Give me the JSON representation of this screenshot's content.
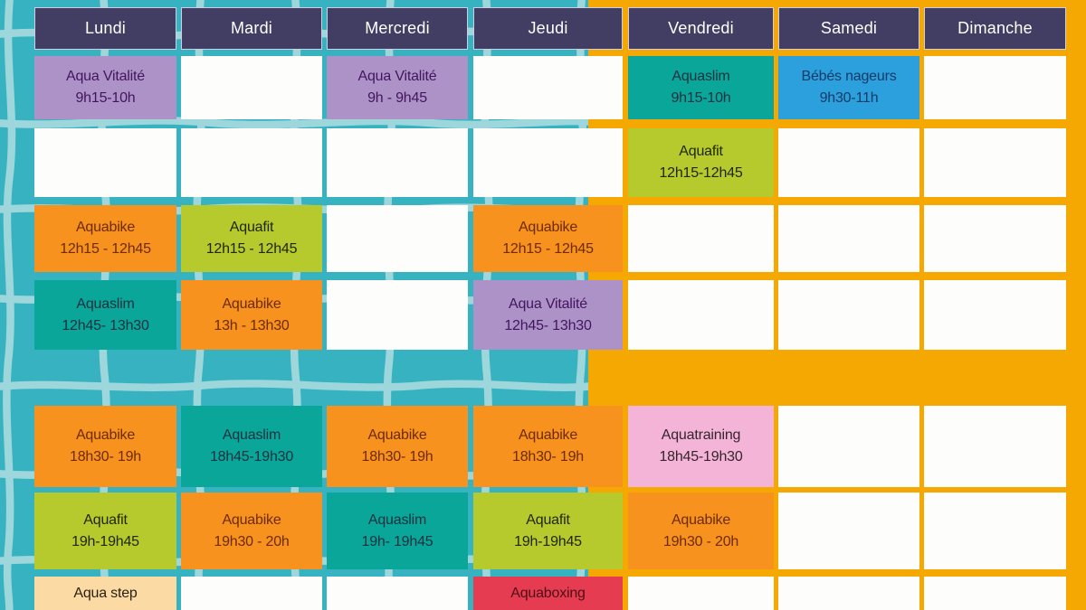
{
  "table": {
    "days": [
      "Lundi",
      "Mardi",
      "Mercredi",
      "Jeudi",
      "Vendredi",
      "Samedi",
      "Dimanche"
    ],
    "rows": [
      {
        "cells": [
          {
            "color": "purple",
            "name": "Aqua Vitalité",
            "time": "9h15-10h"
          },
          {
            "empty": true
          },
          {
            "color": "purple",
            "name": "Aqua Vitalité",
            "time": "9h - 9h45"
          },
          {
            "empty": true
          },
          {
            "color": "teal",
            "name": "Aquaslim",
            "time": "9h15-10h"
          },
          {
            "color": "blue",
            "name": "Bébés nageurs",
            "time": "9h30-11h"
          },
          {
            "empty": true
          }
        ]
      },
      {
        "cells": [
          {
            "empty": true
          },
          {
            "empty": true
          },
          {
            "empty": true
          },
          {
            "empty": true
          },
          {
            "color": "lime",
            "name": "Aquafit",
            "time": "12h15-12h45"
          },
          {
            "empty": true
          },
          {
            "empty": true
          }
        ]
      },
      {
        "cells": [
          {
            "color": "orange",
            "name": "Aquabike",
            "time": "12h15 - 12h45"
          },
          {
            "color": "lime",
            "name": "Aquafit",
            "time": "12h15 - 12h45"
          },
          {
            "empty": true
          },
          {
            "color": "orange",
            "name": "Aquabike",
            "time": "12h15 - 12h45"
          },
          {
            "empty": true
          },
          {
            "empty": true
          },
          {
            "empty": true
          }
        ]
      },
      {
        "cells": [
          {
            "color": "teal",
            "name": "Aquaslim",
            "time": "12h45- 13h30"
          },
          {
            "color": "orange",
            "name": "Aquabike",
            "time": "13h - 13h30"
          },
          {
            "empty": true
          },
          {
            "color": "purple",
            "name": "Aqua Vitalité",
            "time": "12h45- 13h30"
          },
          {
            "empty": true
          },
          {
            "empty": true
          },
          {
            "empty": true
          }
        ]
      },
      {
        "cells": [
          {
            "color": "orange",
            "name": "Aquabike",
            "time": "18h30- 19h"
          },
          {
            "color": "teal",
            "name": "Aquaslim",
            "time": "18h45-19h30"
          },
          {
            "color": "orange",
            "name": "Aquabike",
            "time": "18h30- 19h"
          },
          {
            "color": "orange",
            "name": "Aquabike",
            "time": "18h30- 19h"
          },
          {
            "color": "pink",
            "name": "Aquatraining",
            "time": "18h45-19h30"
          },
          {
            "empty": true
          },
          {
            "empty": true
          }
        ]
      },
      {
        "cells": [
          {
            "color": "lime",
            "name": "Aquafit",
            "time": "19h-19h45"
          },
          {
            "color": "orange",
            "name": "Aquabike",
            "time": "19h30 - 20h"
          },
          {
            "color": "teal",
            "name": "Aquaslim",
            "time": "19h- 19h45"
          },
          {
            "color": "lime",
            "name": "Aquafit",
            "time": "19h-19h45"
          },
          {
            "color": "orange",
            "name": "Aquabike",
            "time": "19h30 - 20h"
          },
          {
            "empty": true
          },
          {
            "empty": true
          }
        ]
      },
      {
        "cells": [
          {
            "color": "peach",
            "name": "Aqua step",
            "time": ""
          },
          {
            "empty": true
          },
          {
            "empty": true
          },
          {
            "color": "red",
            "name": "Aquaboxing",
            "time": ""
          },
          {
            "empty": true
          },
          {
            "empty": true
          },
          {
            "empty": true
          }
        ]
      }
    ]
  },
  "palette": {
    "purple": {
      "bg": "#ad92c7",
      "text": "#43155e"
    },
    "teal": {
      "bg": "#0aa69a",
      "text": "#16313f"
    },
    "blue": {
      "bg": "#2ba0dc",
      "text": "#153a68"
    },
    "orange": {
      "bg": "#f6921d",
      "text": "#6e2a06"
    },
    "lime": {
      "bg": "#b6ca2d",
      "text": "#20260a"
    },
    "pink": {
      "bg": "#f4b4d8",
      "text": "#35242c"
    },
    "peach": {
      "bg": "#fbdba3",
      "text": "#2a2013"
    },
    "red": {
      "bg": "#e63c52",
      "text": "#4d0f14"
    }
  },
  "background": {
    "pool": "#37b2c1",
    "tile_line": "#a6dade",
    "panel": "#f5a802",
    "header_bg": "#413d63",
    "header_text": "#ffffff",
    "empty_cell": "#fdfdfc"
  }
}
